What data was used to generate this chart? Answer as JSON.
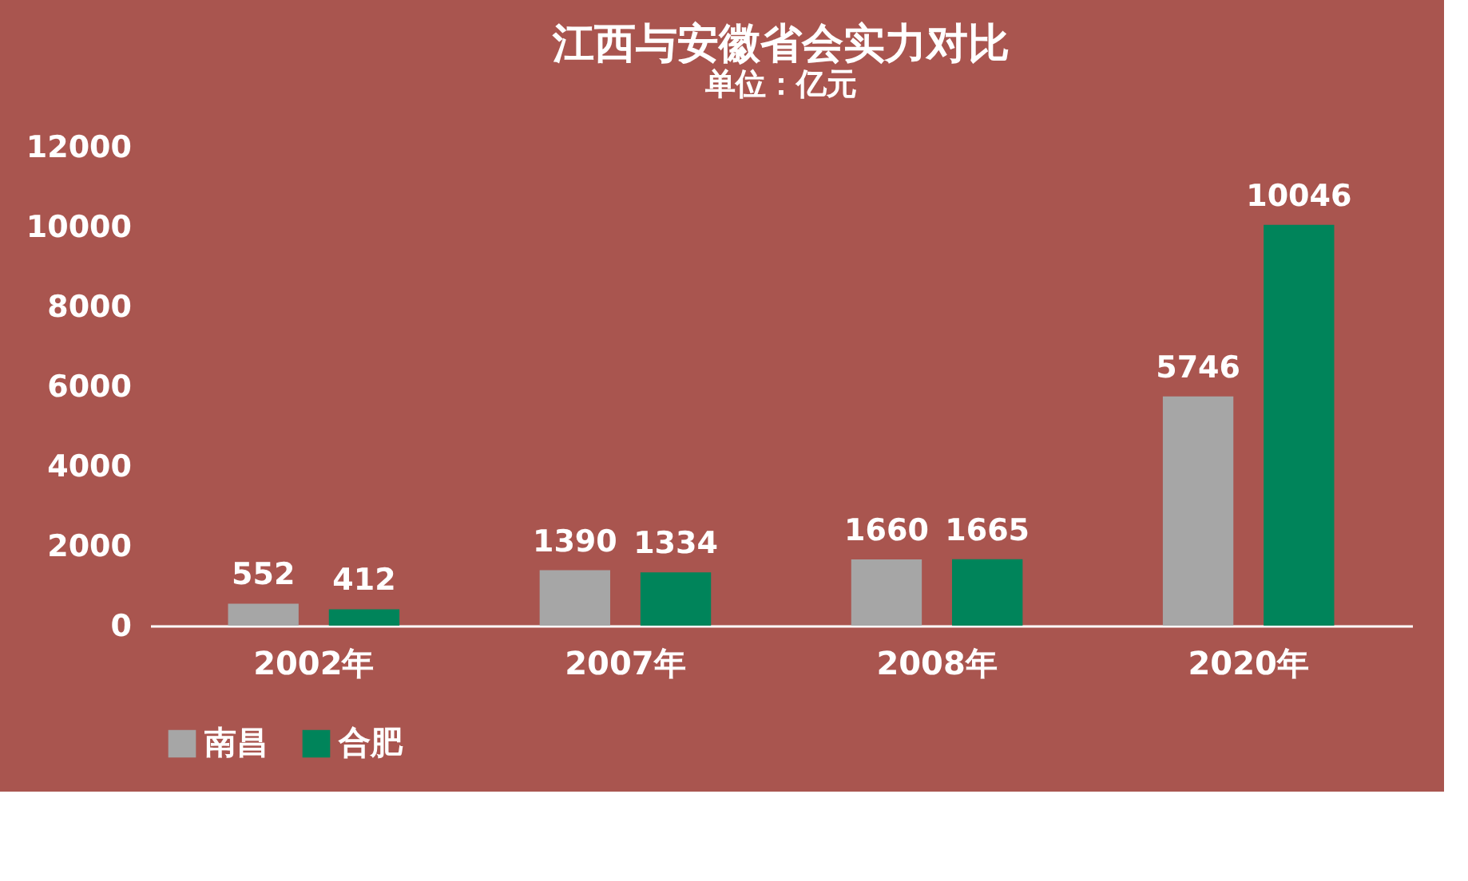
{
  "chart_data": {
    "type": "bar",
    "title": "江西与安徽省会实力对比",
    "subtitle": "单位：亿元",
    "categories": [
      "2002年",
      "2007年",
      "2008年",
      "2020年"
    ],
    "series": [
      {
        "name": "南昌",
        "color": "#a6a6a6",
        "values": [
          552,
          1390,
          1660,
          5746
        ]
      },
      {
        "name": "合肥",
        "color": "#00845a",
        "values": [
          412,
          1334,
          1665,
          10046
        ]
      }
    ],
    "ylim": [
      0,
      12000
    ],
    "yticks": [
      0,
      2000,
      4000,
      6000,
      8000,
      10000,
      12000
    ],
    "data_labels": true,
    "legend": "bottom",
    "grid": false
  }
}
